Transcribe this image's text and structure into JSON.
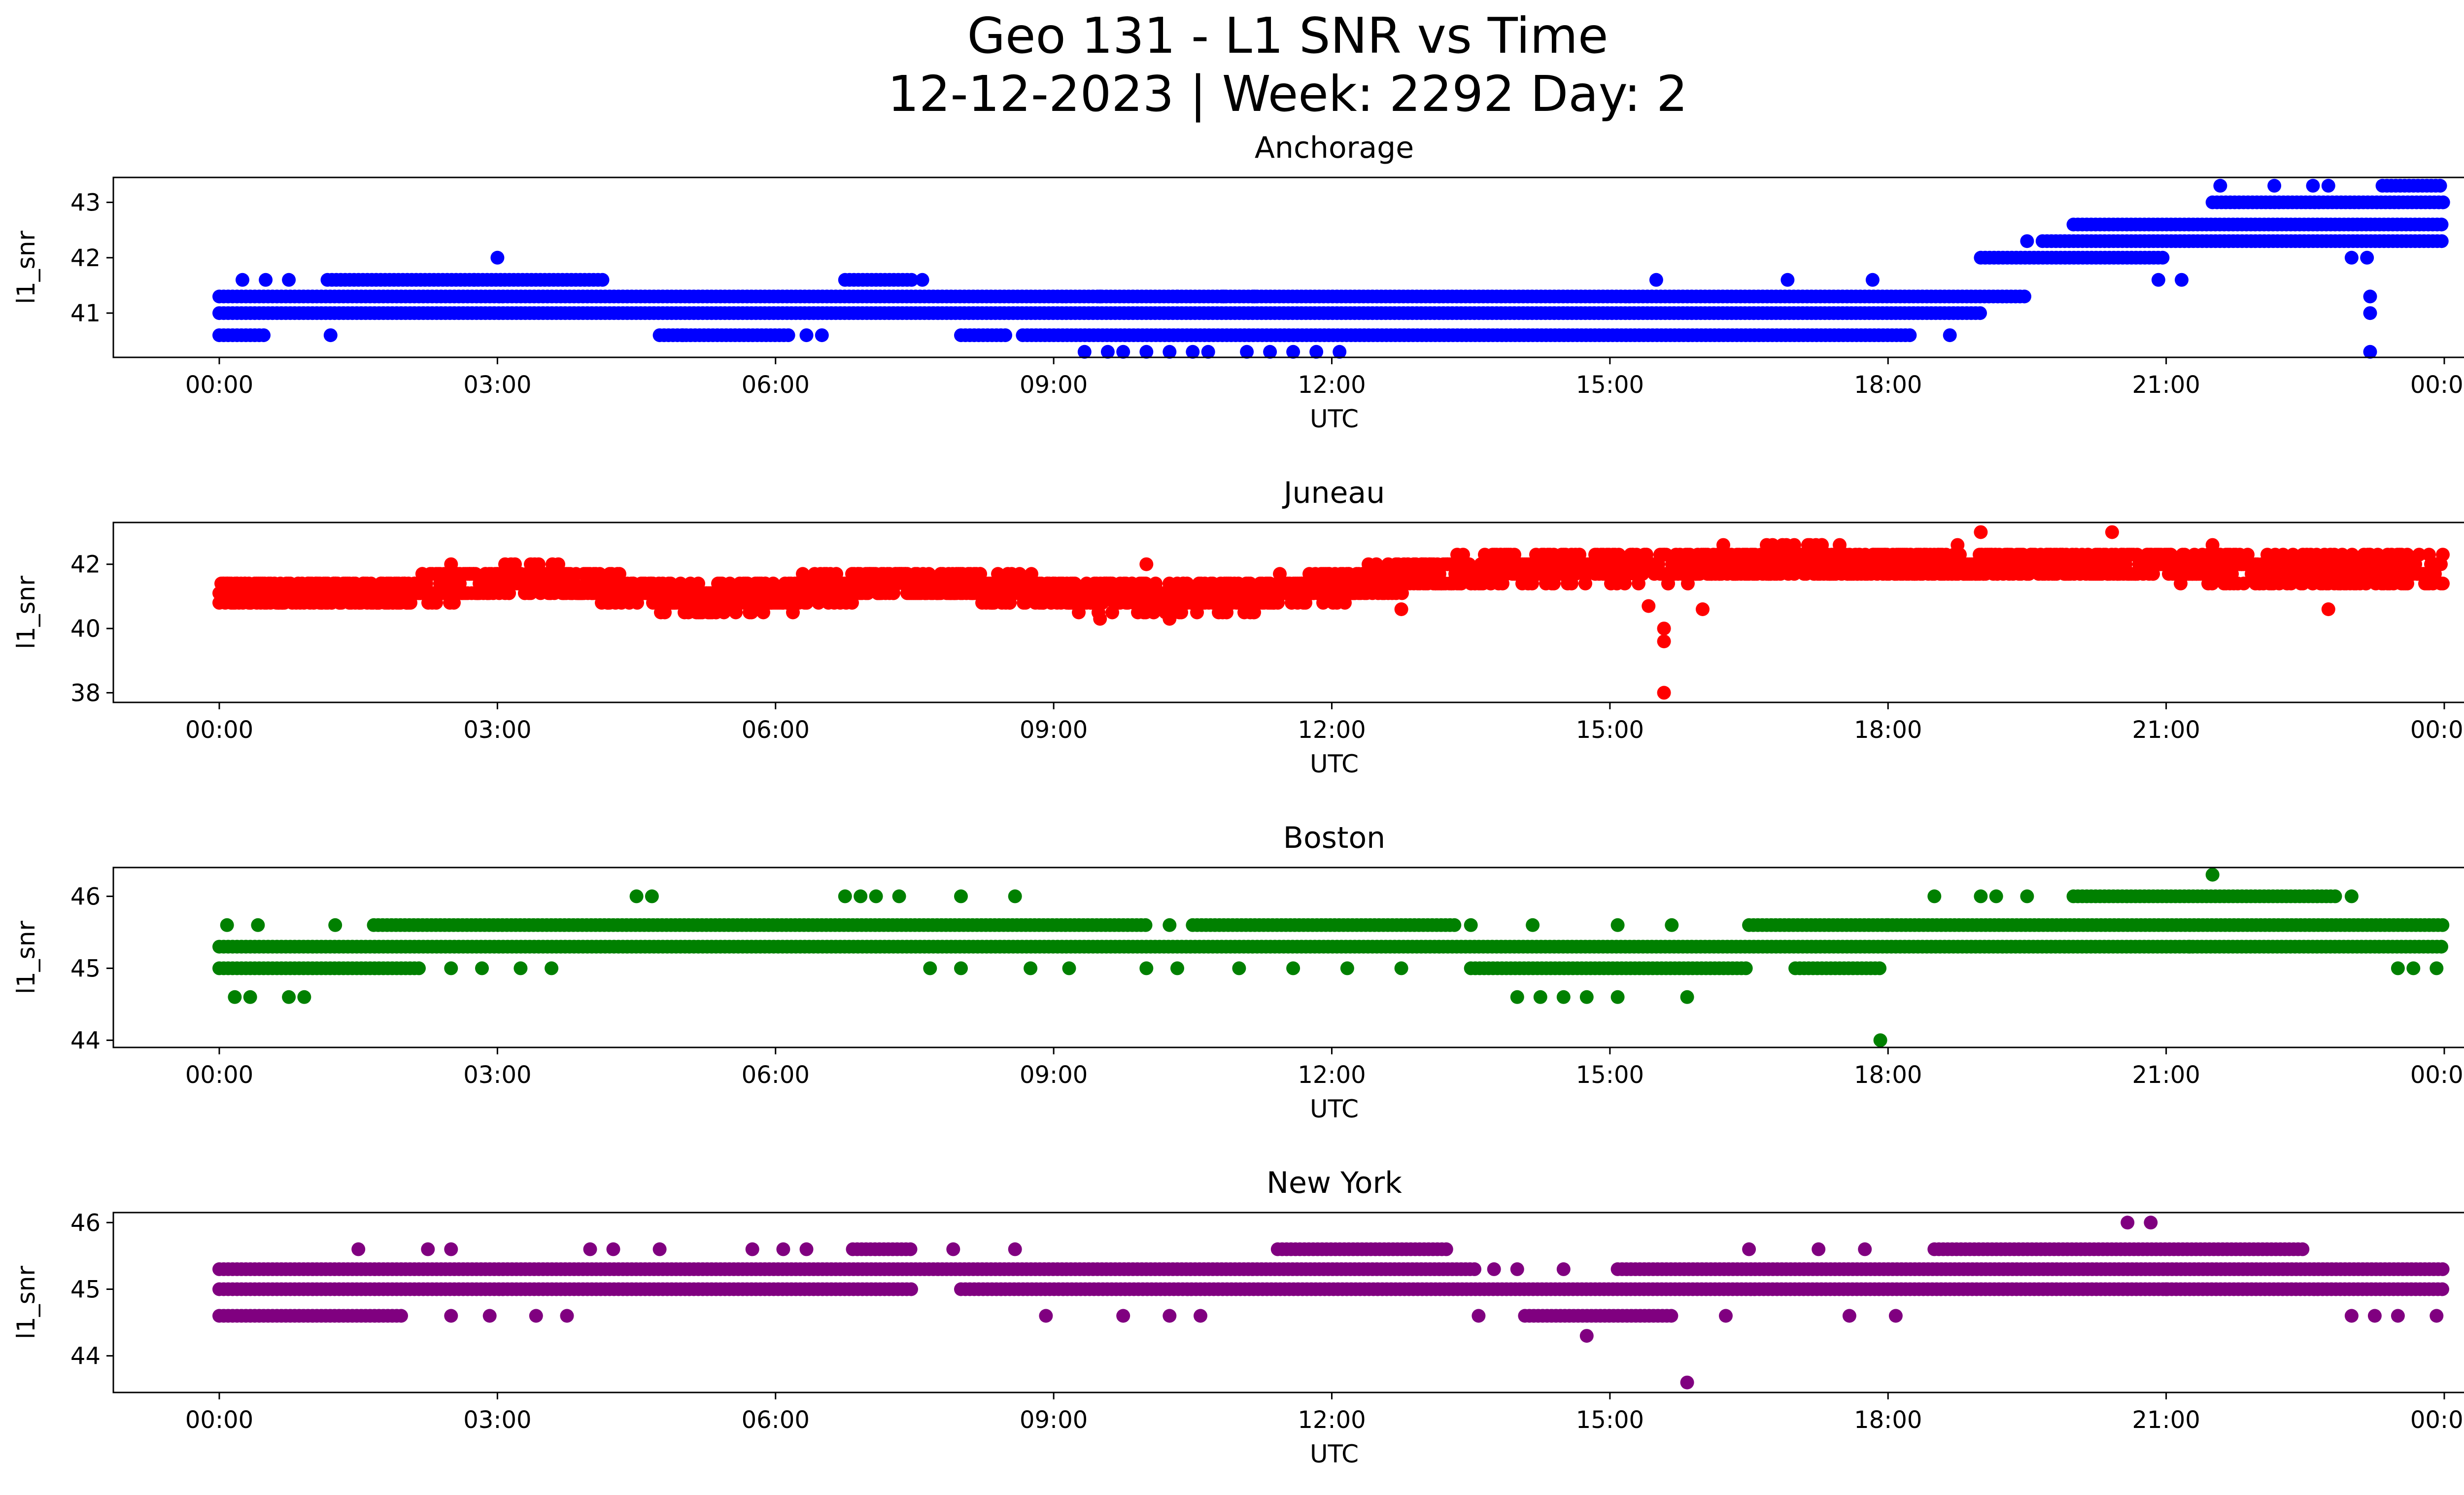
{
  "figure": {
    "title_line1": "Geo 131 - L1 SNR vs Time",
    "title_line2": "12-12-2023 | Week: 2292 Day: 2"
  },
  "chart_data": [
    {
      "type": "scatter",
      "title": "Anchorage",
      "xlabel": "UTC",
      "ylabel": "l1_snr",
      "color": "#0000ff",
      "xlim": [
        "2023-12-12 00:00",
        "2023-12-13 00:00"
      ],
      "ylim": [
        40.2,
        43.45
      ],
      "x_ticks": [
        "00:00",
        "03:00",
        "06:00",
        "09:00",
        "12:00",
        "15:00",
        "18:00",
        "21:00",
        "00:00"
      ],
      "y_ticks": [
        41,
        42,
        43
      ],
      "bands": [
        {
          "y": 41.3,
          "from": "00:00",
          "to": "19:30"
        },
        {
          "y": 41.0,
          "from": "00:00",
          "to": "19:00"
        },
        {
          "y": 40.6,
          "from": "00:00",
          "to": "00:30"
        },
        {
          "y": 40.6,
          "from": "04:45",
          "to": "06:10"
        },
        {
          "y": 40.6,
          "from": "08:00",
          "to": "08:30"
        },
        {
          "y": 40.6,
          "from": "08:40",
          "to": "18:15"
        },
        {
          "y": 41.6,
          "from": "01:10",
          "to": "04:10"
        },
        {
          "y": 41.6,
          "from": "06:45",
          "to": "07:30"
        },
        {
          "y": 42.0,
          "from": "19:00",
          "to": "21:00"
        },
        {
          "y": 42.3,
          "from": "19:40",
          "to": "24:00"
        },
        {
          "y": 42.6,
          "from": "20:00",
          "to": "24:00"
        },
        {
          "y": 43.0,
          "from": "21:30",
          "to": "24:00"
        },
        {
          "y": 43.3,
          "from": "23:20",
          "to": "24:00"
        }
      ],
      "points": [
        {
          "x": "00:15",
          "y": 41.6
        },
        {
          "x": "00:30",
          "y": 41.6
        },
        {
          "x": "00:45",
          "y": 41.6
        },
        {
          "x": "01:12",
          "y": 40.6
        },
        {
          "x": "02:45",
          "y": 41.6
        },
        {
          "x": "03:00",
          "y": 42.0
        },
        {
          "x": "05:00",
          "y": 40.6
        },
        {
          "x": "06:20",
          "y": 40.6
        },
        {
          "x": "06:30",
          "y": 40.6
        },
        {
          "x": "07:35",
          "y": 41.6
        },
        {
          "x": "09:20",
          "y": 40.3
        },
        {
          "x": "09:35",
          "y": 40.3
        },
        {
          "x": "09:45",
          "y": 40.3
        },
        {
          "x": "10:00",
          "y": 40.3
        },
        {
          "x": "10:15",
          "y": 40.3
        },
        {
          "x": "10:30",
          "y": 40.3
        },
        {
          "x": "10:40",
          "y": 40.3
        },
        {
          "x": "11:05",
          "y": 40.3
        },
        {
          "x": "11:20",
          "y": 40.3
        },
        {
          "x": "11:35",
          "y": 40.3
        },
        {
          "x": "11:50",
          "y": 40.3
        },
        {
          "x": "12:05",
          "y": 40.3
        },
        {
          "x": "09:30",
          "y": 41.3
        },
        {
          "x": "10:20",
          "y": 41.3
        },
        {
          "x": "10:50",
          "y": 41.3
        },
        {
          "x": "11:10",
          "y": 41.3
        },
        {
          "x": "15:30",
          "y": 41.6
        },
        {
          "x": "16:55",
          "y": 41.6
        },
        {
          "x": "17:50",
          "y": 41.6
        },
        {
          "x": "18:40",
          "y": 40.6
        },
        {
          "x": "19:30",
          "y": 42.3
        },
        {
          "x": "20:55",
          "y": 41.6
        },
        {
          "x": "21:10",
          "y": 41.6
        },
        {
          "x": "21:35",
          "y": 43.3
        },
        {
          "x": "22:10",
          "y": 43.3
        },
        {
          "x": "22:35",
          "y": 43.3
        },
        {
          "x": "22:45",
          "y": 43.3
        },
        {
          "x": "23:00",
          "y": 42.0
        },
        {
          "x": "23:10",
          "y": 42.0
        },
        {
          "x": "23:12",
          "y": 41.3
        },
        {
          "x": "23:12",
          "y": 41.0
        },
        {
          "x": "23:12",
          "y": 40.3
        }
      ]
    },
    {
      "type": "scatter",
      "title": "Juneau",
      "xlabel": "UTC",
      "ylabel": "l1_snr",
      "color": "#ff0000",
      "xlim": [
        "2023-12-12 00:00",
        "2023-12-13 00:00"
      ],
      "ylim": [
        37.7,
        43.3
      ],
      "x_ticks": [
        "00:00",
        "03:00",
        "06:00",
        "09:00",
        "12:00",
        "15:00",
        "18:00",
        "21:00",
        "00:00"
      ],
      "y_ticks": [
        38,
        40,
        42
      ],
      "trend": [
        {
          "x": "00:00",
          "y": 41.1
        },
        {
          "x": "01:00",
          "y": 41.1
        },
        {
          "x": "02:00",
          "y": 41.1
        },
        {
          "x": "03:00",
          "y": 41.5
        },
        {
          "x": "04:00",
          "y": 41.4
        },
        {
          "x": "05:00",
          "y": 40.9
        },
        {
          "x": "06:00",
          "y": 41.0
        },
        {
          "x": "07:00",
          "y": 41.4
        },
        {
          "x": "08:00",
          "y": 41.4
        },
        {
          "x": "09:00",
          "y": 41.1
        },
        {
          "x": "10:00",
          "y": 41.0
        },
        {
          "x": "11:00",
          "y": 41.0
        },
        {
          "x": "12:00",
          "y": 41.3
        },
        {
          "x": "13:00",
          "y": 41.7
        },
        {
          "x": "14:00",
          "y": 41.9
        },
        {
          "x": "15:00",
          "y": 41.9
        },
        {
          "x": "16:00",
          "y": 42.0
        },
        {
          "x": "17:00",
          "y": 42.1
        },
        {
          "x": "18:00",
          "y": 42.0
        },
        {
          "x": "19:00",
          "y": 42.0
        },
        {
          "x": "20:00",
          "y": 42.0
        },
        {
          "x": "21:00",
          "y": 42.0
        },
        {
          "x": "22:00",
          "y": 41.8
        },
        {
          "x": "23:00",
          "y": 41.8
        },
        {
          "x": "24:00",
          "y": 41.8
        }
      ],
      "spread": 0.45,
      "points": [
        {
          "x": "15:35",
          "y": 40.0
        },
        {
          "x": "15:35",
          "y": 39.6
        },
        {
          "x": "15:35",
          "y": 38.0
        },
        {
          "x": "15:25",
          "y": 40.7
        },
        {
          "x": "19:00",
          "y": 43.0
        },
        {
          "x": "20:25",
          "y": 43.0
        },
        {
          "x": "12:45",
          "y": 40.6
        },
        {
          "x": "22:45",
          "y": 40.6
        },
        {
          "x": "02:30",
          "y": 42.0
        },
        {
          "x": "09:30",
          "y": 40.3
        },
        {
          "x": "10:00",
          "y": 42.0
        },
        {
          "x": "10:15",
          "y": 40.3
        },
        {
          "x": "16:00",
          "y": 40.6
        },
        {
          "x": "21:30",
          "y": 42.6
        },
        {
          "x": "18:45",
          "y": 42.6
        }
      ]
    },
    {
      "type": "scatter",
      "title": "Boston",
      "xlabel": "UTC",
      "ylabel": "l1_snr",
      "color": "#008000",
      "xlim": [
        "2023-12-12 00:00",
        "2023-12-13 00:00"
      ],
      "ylim": [
        43.9,
        46.4
      ],
      "x_ticks": [
        "00:00",
        "03:00",
        "06:00",
        "09:00",
        "12:00",
        "15:00",
        "18:00",
        "21:00",
        "00:00"
      ],
      "y_ticks": [
        44,
        45,
        46
      ],
      "bands": [
        {
          "y": 45.3,
          "from": "00:00",
          "to": "24:00"
        },
        {
          "y": 45.0,
          "from": "00:00",
          "to": "02:10"
        },
        {
          "y": 45.0,
          "from": "13:30",
          "to": "16:30"
        },
        {
          "y": 45.0,
          "from": "17:00",
          "to": "17:55"
        },
        {
          "y": 45.6,
          "from": "01:40",
          "to": "10:00"
        },
        {
          "y": 45.6,
          "from": "10:30",
          "to": "13:20"
        },
        {
          "y": 45.6,
          "from": "16:30",
          "to": "18:00"
        },
        {
          "y": 45.6,
          "from": "18:00",
          "to": "24:00"
        },
        {
          "y": 46.0,
          "from": "20:00",
          "to": "22:50"
        }
      ],
      "points": [
        {
          "x": "00:05",
          "y": 45.6
        },
        {
          "x": "00:25",
          "y": 45.6
        },
        {
          "x": "01:15",
          "y": 45.6
        },
        {
          "x": "00:10",
          "y": 44.6
        },
        {
          "x": "00:20",
          "y": 44.6
        },
        {
          "x": "00:45",
          "y": 44.6
        },
        {
          "x": "00:55",
          "y": 44.6
        },
        {
          "x": "04:30",
          "y": 46.0
        },
        {
          "x": "04:40",
          "y": 46.0
        },
        {
          "x": "06:45",
          "y": 46.0
        },
        {
          "x": "06:55",
          "y": 46.0
        },
        {
          "x": "07:05",
          "y": 46.0
        },
        {
          "x": "07:20",
          "y": 46.0
        },
        {
          "x": "08:00",
          "y": 46.0
        },
        {
          "x": "08:35",
          "y": 46.0
        },
        {
          "x": "02:30",
          "y": 45.0
        },
        {
          "x": "02:50",
          "y": 45.0
        },
        {
          "x": "03:15",
          "y": 45.0
        },
        {
          "x": "03:35",
          "y": 45.0
        },
        {
          "x": "07:40",
          "y": 45.0
        },
        {
          "x": "08:00",
          "y": 45.0
        },
        {
          "x": "08:45",
          "y": 45.0
        },
        {
          "x": "09:10",
          "y": 45.0
        },
        {
          "x": "10:00",
          "y": 45.0
        },
        {
          "x": "10:20",
          "y": 45.0
        },
        {
          "x": "11:00",
          "y": 45.0
        },
        {
          "x": "11:35",
          "y": 45.0
        },
        {
          "x": "12:10",
          "y": 45.0
        },
        {
          "x": "12:45",
          "y": 45.0
        },
        {
          "x": "14:00",
          "y": 44.6
        },
        {
          "x": "14:15",
          "y": 44.6
        },
        {
          "x": "14:30",
          "y": 44.6
        },
        {
          "x": "14:45",
          "y": 44.6
        },
        {
          "x": "15:05",
          "y": 44.6
        },
        {
          "x": "15:50",
          "y": 44.6
        },
        {
          "x": "17:55",
          "y": 44.0
        },
        {
          "x": "18:30",
          "y": 46.0
        },
        {
          "x": "19:00",
          "y": 46.0
        },
        {
          "x": "19:10",
          "y": 46.0
        },
        {
          "x": "19:30",
          "y": 46.0
        },
        {
          "x": "21:30",
          "y": 46.3
        },
        {
          "x": "23:00",
          "y": 46.0
        },
        {
          "x": "13:30",
          "y": 45.6
        },
        {
          "x": "14:10",
          "y": 45.6
        },
        {
          "x": "15:05",
          "y": 45.6
        },
        {
          "x": "15:40",
          "y": 45.6
        },
        {
          "x": "10:15",
          "y": 45.6
        },
        {
          "x": "21:15",
          "y": 45.3
        },
        {
          "x": "23:30",
          "y": 45.0
        },
        {
          "x": "23:40",
          "y": 45.0
        },
        {
          "x": "23:55",
          "y": 45.0
        }
      ]
    },
    {
      "type": "scatter",
      "title": "New York",
      "xlabel": "UTC",
      "ylabel": "l1_snr",
      "color": "#800080",
      "xlim": [
        "2023-12-12 00:00",
        "2023-12-13 00:00"
      ],
      "ylim": [
        43.45,
        46.15
      ],
      "x_ticks": [
        "00:00",
        "03:00",
        "06:00",
        "09:00",
        "12:00",
        "15:00",
        "18:00",
        "21:00",
        "00:00"
      ],
      "y_ticks": [
        44,
        45,
        46
      ],
      "bands": [
        {
          "y": 45.3,
          "from": "00:00",
          "to": "13:35"
        },
        {
          "y": 45.3,
          "from": "15:05",
          "to": "24:00"
        },
        {
          "y": 45.0,
          "from": "00:00",
          "to": "07:30"
        },
        {
          "y": 45.0,
          "from": "08:00",
          "to": "24:00"
        },
        {
          "y": 44.6,
          "from": "00:00",
          "to": "02:00"
        },
        {
          "y": 44.6,
          "from": "14:05",
          "to": "15:40"
        },
        {
          "y": 45.6,
          "from": "06:50",
          "to": "07:30"
        },
        {
          "y": 45.6,
          "from": "11:25",
          "to": "13:15"
        },
        {
          "y": 45.6,
          "from": "18:30",
          "to": "22:30"
        }
      ],
      "points": [
        {
          "x": "01:30",
          "y": 45.6
        },
        {
          "x": "02:15",
          "y": 45.6
        },
        {
          "x": "02:30",
          "y": 45.6
        },
        {
          "x": "04:00",
          "y": 45.6
        },
        {
          "x": "04:15",
          "y": 45.6
        },
        {
          "x": "04:45",
          "y": 45.6
        },
        {
          "x": "05:45",
          "y": 45.6
        },
        {
          "x": "06:05",
          "y": 45.6
        },
        {
          "x": "06:20",
          "y": 45.6
        },
        {
          "x": "07:55",
          "y": 45.6
        },
        {
          "x": "08:35",
          "y": 45.6
        },
        {
          "x": "02:30",
          "y": 44.6
        },
        {
          "x": "02:55",
          "y": 44.6
        },
        {
          "x": "03:25",
          "y": 44.6
        },
        {
          "x": "03:45",
          "y": 44.6
        },
        {
          "x": "08:55",
          "y": 44.6
        },
        {
          "x": "09:45",
          "y": 44.6
        },
        {
          "x": "10:15",
          "y": 44.6
        },
        {
          "x": "10:35",
          "y": 44.6
        },
        {
          "x": "13:35",
          "y": 44.6
        },
        {
          "x": "13:45",
          "y": 45.3
        },
        {
          "x": "14:00",
          "y": 45.3
        },
        {
          "x": "14:30",
          "y": 45.3
        },
        {
          "x": "14:45",
          "y": 44.3
        },
        {
          "x": "15:50",
          "y": 43.6
        },
        {
          "x": "16:15",
          "y": 44.6
        },
        {
          "x": "17:35",
          "y": 44.6
        },
        {
          "x": "18:05",
          "y": 44.6
        },
        {
          "x": "16:30",
          "y": 45.6
        },
        {
          "x": "17:15",
          "y": 45.6
        },
        {
          "x": "17:45",
          "y": 45.6
        },
        {
          "x": "20:35",
          "y": 46.0
        },
        {
          "x": "20:50",
          "y": 46.0
        },
        {
          "x": "21:00",
          "y": 45.0
        },
        {
          "x": "23:00",
          "y": 44.6
        },
        {
          "x": "23:15",
          "y": 44.6
        },
        {
          "x": "23:30",
          "y": 44.6
        },
        {
          "x": "23:55",
          "y": 44.6
        }
      ]
    }
  ]
}
